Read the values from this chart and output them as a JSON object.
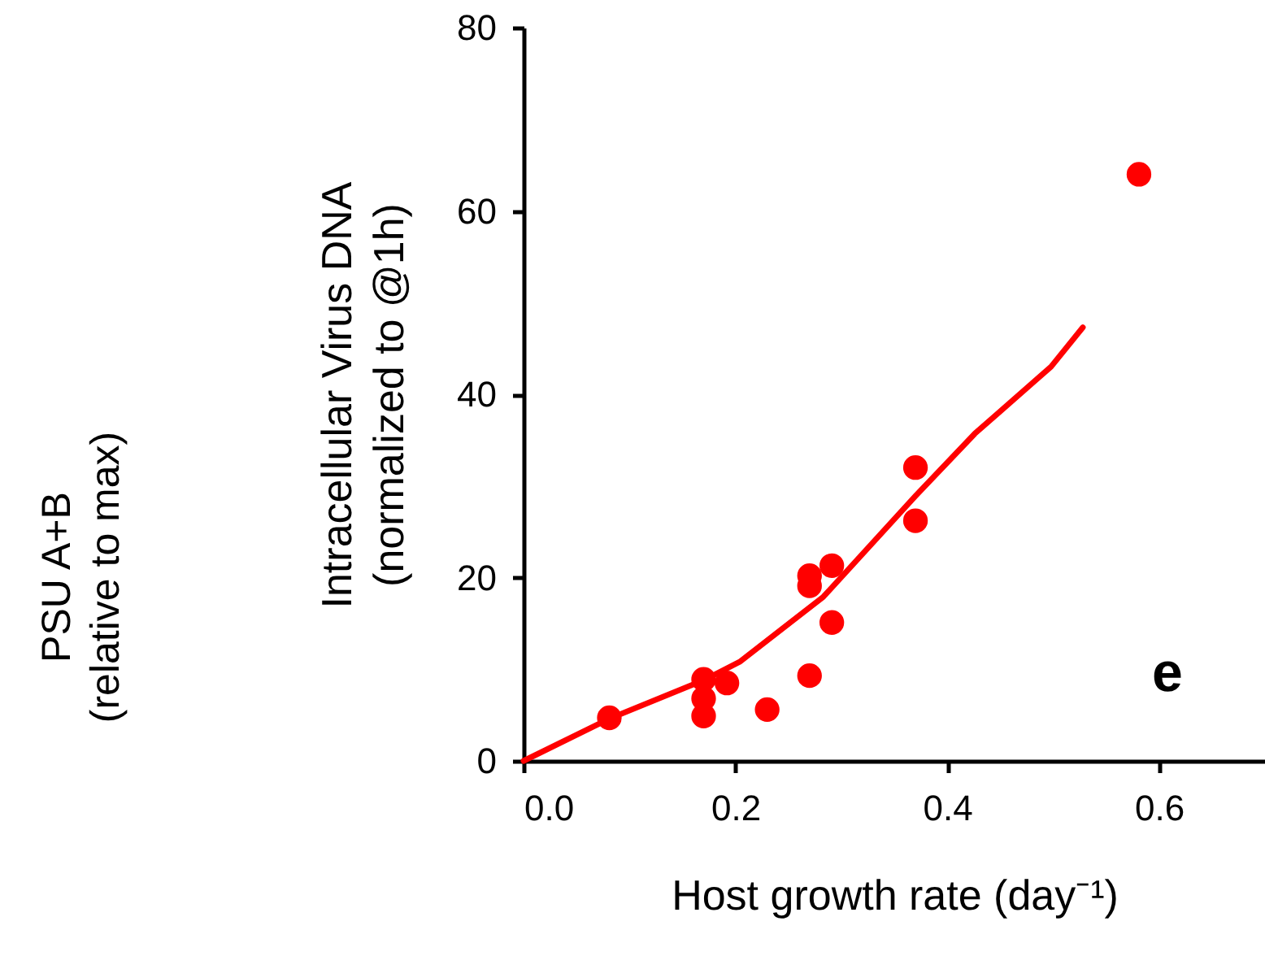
{
  "chart_data": {
    "type": "scatter",
    "xlabel": "Host growth rate (day⁻¹)",
    "ylabel": "Intracellular Virus DNA\n(normalized to @1h)",
    "annotations": [
      "e",
      "PSU A+B\n(relative to max)"
    ],
    "xlim": [
      0,
      0.7
    ],
    "ylim": [
      0,
      80
    ],
    "xticks": [
      {
        "value": 0,
        "label": "0.0"
      },
      {
        "value": 0.2,
        "label": "0.2"
      },
      {
        "value": 0.4,
        "label": "0.4"
      },
      {
        "value": 0.6,
        "label": "0.6"
      }
    ],
    "yticks": [
      0,
      20,
      40,
      60,
      80
    ],
    "series": [
      {
        "type": "line",
        "color": "#ff0000",
        "line_style": "solid",
        "x": [
          0,
          0.081,
          0.17,
          0.204,
          0.283,
          0.37,
          0.426,
          0.498,
          0.528
        ],
        "values": [
          0,
          4.6,
          8.8,
          10.8,
          17.9,
          28.9,
          35.7,
          43.0,
          47.3
        ]
      },
      {
        "color": "#ff0000",
        "marker": "circle",
        "x": [
          0.081,
          0.17,
          0.17,
          0.17,
          0.192,
          0.23,
          0.27,
          0.27,
          0.27,
          0.291,
          0.291,
          0.37,
          0.37,
          0.581
        ],
        "values": [
          4.7,
          8.9,
          6.8,
          4.9,
          8.5,
          5.6,
          9.3,
          20.2,
          19.1,
          21.3,
          15.1,
          32.0,
          26.2,
          64.0
        ]
      }
    ]
  }
}
